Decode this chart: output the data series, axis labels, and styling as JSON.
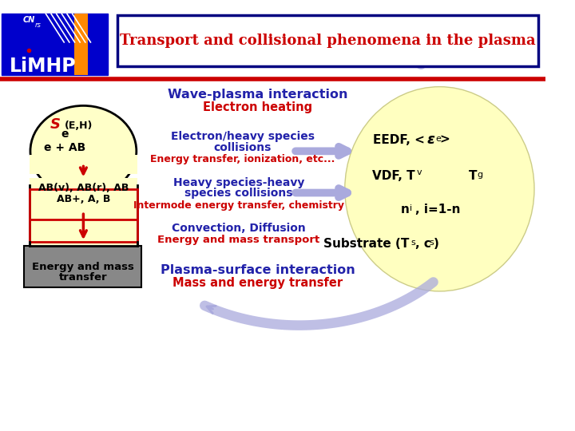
{
  "bg_color": "#ffffff",
  "title_text": "Transport and collisional phenomena in the plasma",
  "title_color": "#cc0000",
  "title_box_edge": "#000080",
  "logo_bg": "#0000cc",
  "separator_color": "#cc0000",
  "wave_plasma_text": "Wave-plasma interaction",
  "electron_heating_text": "Electron heating",
  "energy_transfer_text": "Energy transfer, ionization, etc...",
  "intermode_text": "Intermode energy transfer, chemistry",
  "convection_text": "Convection, Diffusion",
  "energy_mass_transport_text": "Energy and mass transport",
  "plasma_surface_text": "Plasma-surface interaction",
  "mass_energy_text": "Mass and energy transfer",
  "blue_text_color": "#2222aa",
  "red_text_color": "#cc0000",
  "circle_color": "#ffffc0",
  "plasma_shape_color": "#ffffc8",
  "substrate_box_color": "#888888",
  "arrow_color": "#aaaadd",
  "logo_orange": "#ff8800",
  "logo_white": "#ffffff",
  "logo_blue": "#0000cc",
  "logo_red": "#cc0000"
}
